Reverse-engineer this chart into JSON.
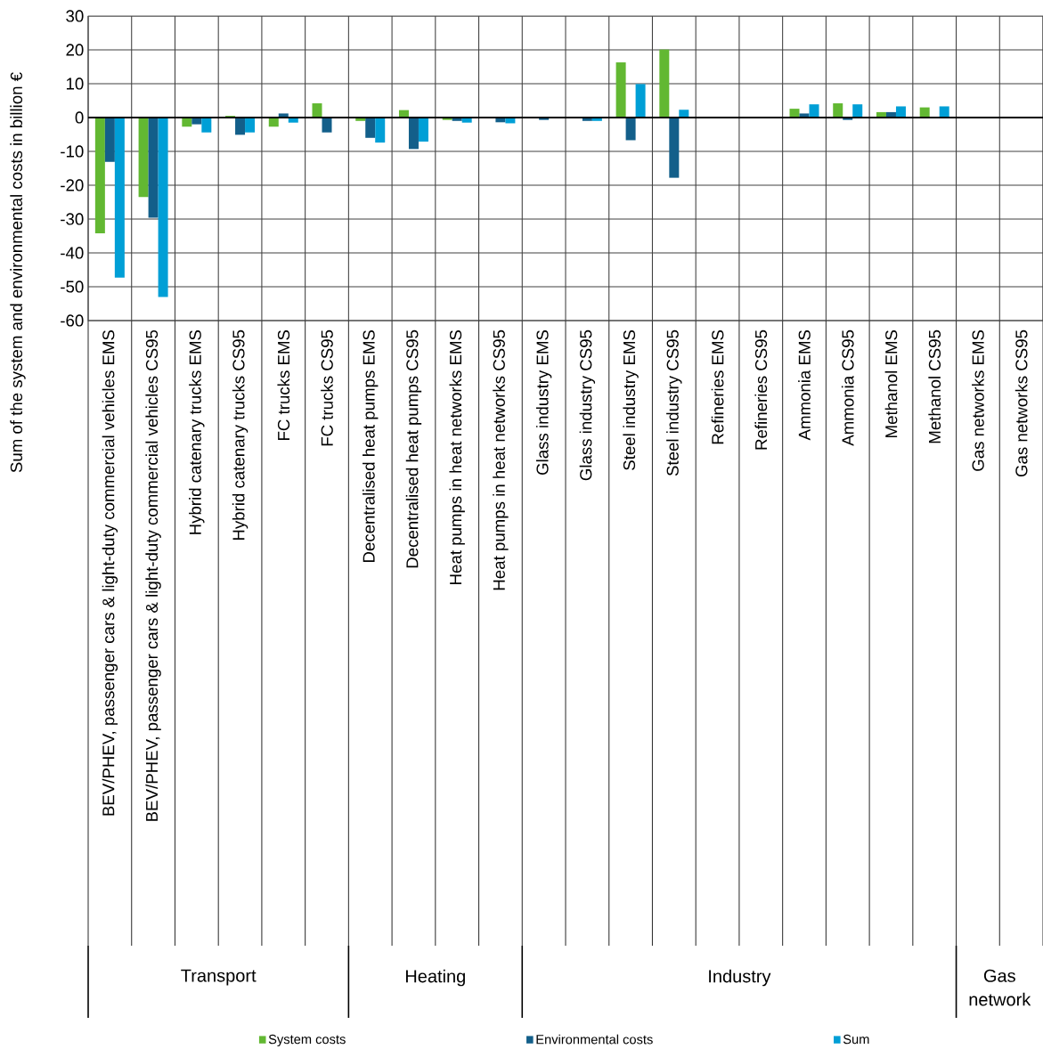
{
  "chart_data": {
    "type": "bar",
    "ylabel": "Sum of the system and environmental costs in billion €",
    "categories": [
      "BEV/PHEV, passenger cars & light-duty commercial vehicles EMS",
      "BEV/PHEV, passenger cars & light-duty commercial vehicles CS95",
      "Hybrid catenary trucks EMS",
      "Hybrid catenary trucks CS95",
      "FC trucks EMS",
      "FC trucks CS95",
      "Decentralised heat pumps EMS",
      "Decentralised heat pumps CS95",
      "Heat pumps in heat networks EMS",
      "Heat pumps in heat networks CS95",
      "Glass industry EMS",
      "Glass industry CS95",
      "Steel industry EMS",
      "Steel industry CS95",
      "Refineries EMS",
      "Refineries CS95",
      "Ammonia EMS",
      "Ammonia CS95",
      "Methanol EMS",
      "Methanol CS95",
      "Gas networks EMS",
      "Gas networks CS95"
    ],
    "series": [
      {
        "name": "System costs",
        "color": "#62b832",
        "values": [
          -34.2,
          -23.5,
          -2.7,
          0.5,
          -2.7,
          4.2,
          -1.0,
          2.2,
          -0.7,
          0,
          0,
          0,
          16.3,
          20.1,
          0,
          0,
          2.6,
          4.2,
          1.6,
          3.0,
          0,
          0
        ]
      },
      {
        "name": "Environmental costs",
        "color": "#135f8a",
        "values": [
          -13.1,
          -29.6,
          -2.0,
          -5.1,
          1.2,
          -4.4,
          -6.0,
          -9.3,
          -1.0,
          -1.4,
          -0.7,
          -1.0,
          -6.7,
          -17.8,
          0,
          0,
          1.2,
          -0.7,
          1.6,
          0,
          0,
          0
        ]
      },
      {
        "name": "Sum",
        "color": "#009fd6",
        "values": [
          -47.3,
          -53.0,
          -4.4,
          -4.4,
          -1.5,
          0,
          -7.4,
          -7.1,
          -1.5,
          -1.7,
          0,
          -1.0,
          9.9,
          2.3,
          0,
          0,
          3.9,
          3.9,
          3.3,
          3.3,
          0,
          0
        ]
      }
    ],
    "ylim": [
      -60,
      30
    ],
    "yticks": [
      30,
      20,
      10,
      0,
      -10,
      -20,
      -30,
      -40,
      -50,
      -60
    ],
    "annotations": [
      "Transport",
      "Heating",
      "Industry",
      "Gas network"
    ],
    "grid": true,
    "legend": "bottom"
  }
}
